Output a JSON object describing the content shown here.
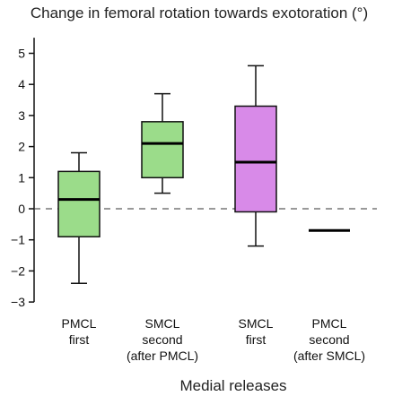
{
  "chart_data": {
    "type": "box",
    "title": "Change in femoral rotation towards exotoration (°)",
    "xlabel": "Medial releases",
    "ylabel": "",
    "ylim": [
      -3,
      5.5
    ],
    "yticks": [
      -3,
      -2,
      -1,
      0,
      1,
      2,
      3,
      4,
      5
    ],
    "reference_line": {
      "y": 0,
      "style": "dashed"
    },
    "grid": false,
    "categories": [
      {
        "lines": [
          "PMCL",
          "first"
        ]
      },
      {
        "lines": [
          "SMCL",
          "second",
          "(after PMCL)"
        ]
      },
      {
        "lines": [
          "SMCL",
          "first"
        ]
      },
      {
        "lines": [
          "PMCL",
          "second",
          "(after SMCL)"
        ]
      }
    ],
    "boxes": [
      {
        "category": 0,
        "min": -2.4,
        "q1": -0.9,
        "median": 0.3,
        "q3": 1.2,
        "max": 1.8,
        "color": "#9bdc8a"
      },
      {
        "category": 1,
        "min": 0.5,
        "q1": 1.0,
        "median": 2.1,
        "q3": 2.8,
        "max": 3.7,
        "color": "#9bdc8a"
      },
      {
        "category": 2,
        "min": -1.2,
        "q1": -0.1,
        "median": 1.5,
        "q3": 3.3,
        "max": 4.6,
        "color": "#d88ae8"
      },
      {
        "category": 3,
        "min": -0.7,
        "q1": -0.7,
        "median": -0.7,
        "q3": -0.7,
        "max": -0.7,
        "color": "#000000"
      }
    ]
  }
}
